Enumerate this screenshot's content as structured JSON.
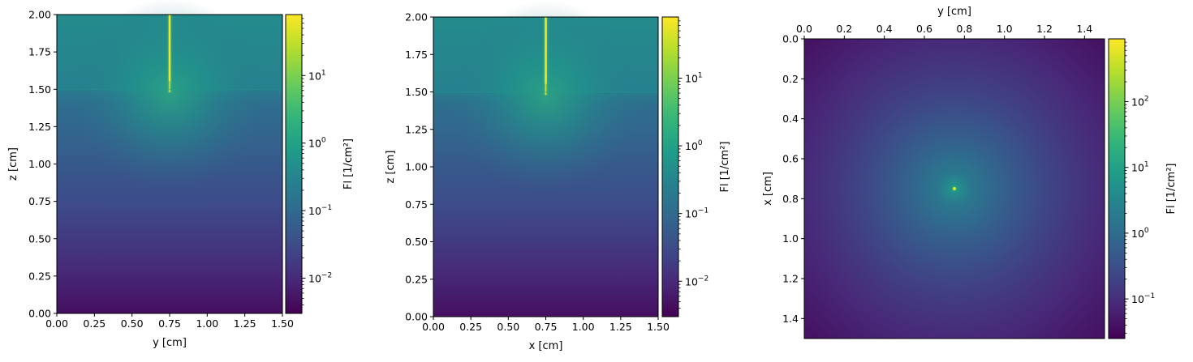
{
  "chart_data": [
    {
      "type": "heatmap",
      "title": "",
      "xlabel": "y [cm]",
      "ylabel": "z [cm]",
      "xlim": [
        0.0,
        1.5
      ],
      "ylim": [
        0.0,
        2.0
      ],
      "x_ticks": [
        "0.00",
        "0.25",
        "0.50",
        "0.75",
        "1.00",
        "1.25",
        "1.50"
      ],
      "x_tick_values": [
        0.0,
        0.25,
        0.5,
        0.75,
        1.0,
        1.25,
        1.5
      ],
      "y_ticks": [
        "0.00",
        "0.25",
        "0.50",
        "0.75",
        "1.00",
        "1.25",
        "1.50",
        "1.75",
        "2.00"
      ],
      "y_tick_values": [
        0.0,
        0.25,
        0.5,
        0.75,
        1.0,
        1.25,
        1.5,
        1.75,
        2.0
      ],
      "colorbar": {
        "label": "Fl [1/cm²]",
        "scale": "log",
        "range": [
          0.003,
          80
        ],
        "tick_base": "10",
        "tick_exponents": [
          "−2",
          "−1",
          "0",
          "1"
        ],
        "tick_values": [
          0.01,
          0.1,
          1,
          10
        ],
        "colormap": "viridis"
      },
      "features": {
        "beam_axis_position": 0.75,
        "interface_depth": 1.5,
        "surface": 2.0
      }
    },
    {
      "type": "heatmap",
      "title": "",
      "xlabel": "x [cm]",
      "ylabel": "z [cm]",
      "xlim": [
        0.0,
        1.5
      ],
      "ylim": [
        0.0,
        2.0
      ],
      "x_ticks": [
        "0.00",
        "0.25",
        "0.50",
        "0.75",
        "1.00",
        "1.25",
        "1.50"
      ],
      "x_tick_values": [
        0.0,
        0.25,
        0.5,
        0.75,
        1.0,
        1.25,
        1.5
      ],
      "y_ticks": [
        "0.00",
        "0.25",
        "0.50",
        "0.75",
        "1.00",
        "1.25",
        "1.50",
        "1.75",
        "2.00"
      ],
      "y_tick_values": [
        0.0,
        0.25,
        0.5,
        0.75,
        1.0,
        1.25,
        1.5,
        1.75,
        2.0
      ],
      "colorbar": {
        "label": "Fl [1/cm²]",
        "scale": "log",
        "range": [
          0.003,
          80
        ],
        "tick_base": "10",
        "tick_exponents": [
          "−2",
          "−1",
          "0",
          "1"
        ],
        "tick_values": [
          0.01,
          0.1,
          1,
          10
        ],
        "colormap": "viridis"
      },
      "features": {
        "beam_axis_position": 0.75,
        "interface_depth": 1.5,
        "surface": 2.0
      }
    },
    {
      "type": "heatmap",
      "title": "",
      "xlabel": "y [cm]",
      "ylabel": "x [cm]",
      "xaxis_position": "top",
      "yaxis_inverted": true,
      "xlim": [
        0.0,
        1.5
      ],
      "ylim": [
        1.5,
        0.0
      ],
      "x_ticks": [
        "0.0",
        "0.2",
        "0.4",
        "0.6",
        "0.8",
        "1.0",
        "1.2",
        "1.4"
      ],
      "x_tick_values": [
        0.0,
        0.2,
        0.4,
        0.6,
        0.8,
        1.0,
        1.2,
        1.4
      ],
      "y_ticks": [
        "0.0",
        "0.2",
        "0.4",
        "0.6",
        "0.8",
        "1.0",
        "1.2",
        "1.4"
      ],
      "y_tick_values": [
        0.0,
        0.2,
        0.4,
        0.6,
        0.8,
        1.0,
        1.2,
        1.4
      ],
      "colorbar": {
        "label": "Fl [1/cm²]",
        "scale": "log",
        "range": [
          0.025,
          900
        ],
        "tick_base": "10",
        "tick_exponents": [
          "−1",
          "0",
          "1",
          "2"
        ],
        "tick_values": [
          0.1,
          1,
          10,
          100
        ],
        "colormap": "viridis"
      },
      "features": {
        "beam_center": [
          0.75,
          0.75
        ]
      }
    }
  ]
}
